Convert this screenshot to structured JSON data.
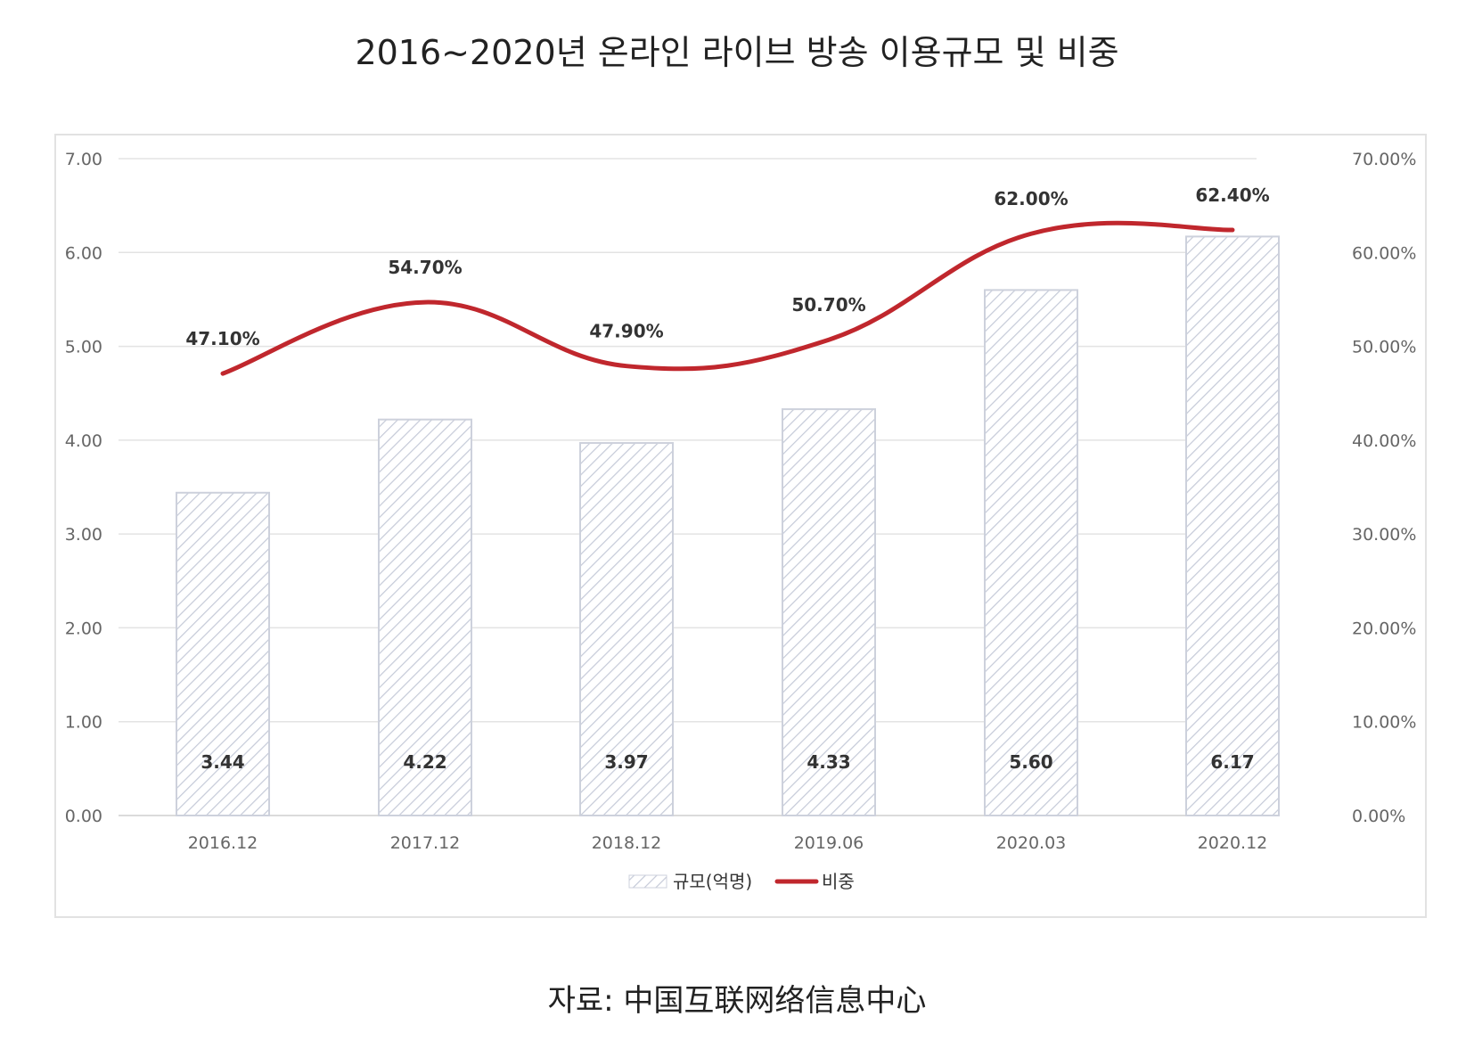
{
  "title": "2016~2020년 온라인 라이브 방송 이용규모 및 비중",
  "source": "자료: 中国互联网络信息中心",
  "chart_data": {
    "type": "bar",
    "categories": [
      "2016.12",
      "2017.12",
      "2018.12",
      "2019.06",
      "2020.03",
      "2020.12"
    ],
    "series": [
      {
        "name": "규모(억명)",
        "type": "bar",
        "axis": "left",
        "values": [
          3.44,
          4.22,
          3.97,
          4.33,
          5.6,
          6.17
        ],
        "labels": [
          "3.44",
          "4.22",
          "3.97",
          "4.33",
          "5.60",
          "6.17"
        ]
      },
      {
        "name": "비중",
        "type": "line",
        "axis": "right",
        "values": [
          47.1,
          54.7,
          47.9,
          50.7,
          62.0,
          62.4
        ],
        "labels": [
          "47.10%",
          "54.70%",
          "47.90%",
          "50.70%",
          "62.00%",
          "62.40%"
        ]
      }
    ],
    "y_left": {
      "min": 0,
      "max": 7,
      "ticks": [
        "0.00",
        "1.00",
        "2.00",
        "3.00",
        "4.00",
        "5.00",
        "6.00",
        "7.00"
      ]
    },
    "y_right": {
      "min": 0,
      "max": 70,
      "ticks": [
        "0.00%",
        "10.00%",
        "20.00%",
        "30.00%",
        "40.00%",
        "50.00%",
        "60.00%",
        "70.00%"
      ]
    },
    "grid": true,
    "legend_position": "bottom",
    "colors": {
      "bar_fill": "#ffffff",
      "bar_hatch": "#c5cad8",
      "bar_border": "#cdd1dc",
      "line": "#c0272d",
      "grid": "#e3e3e3",
      "axis_text": "#666666",
      "label_text": "#333333"
    }
  }
}
